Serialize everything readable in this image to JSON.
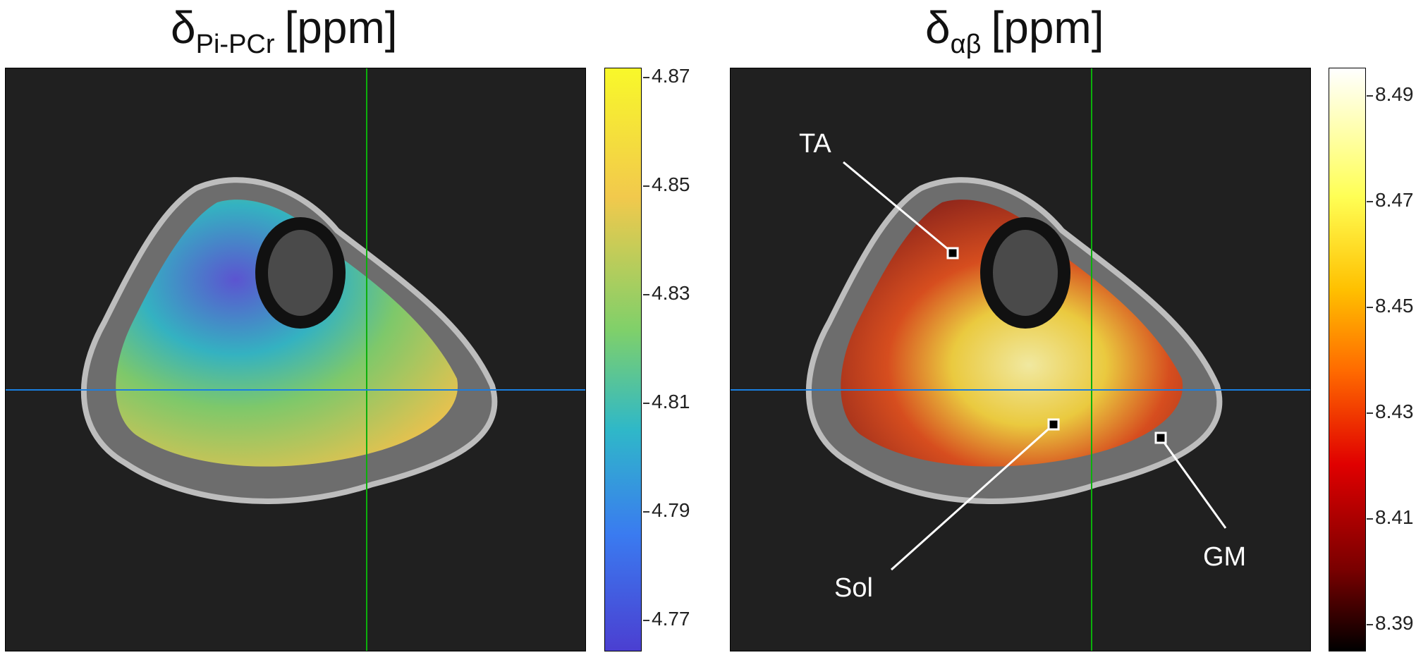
{
  "left_panel": {
    "title": "δ",
    "title_sub": "Pi-PCr",
    "title_unit": "[ppm]",
    "colorbar": {
      "colormap": "parula",
      "ticks": [
        "4.87",
        "4.85",
        "4.83",
        "4.81",
        "4.79",
        "4.77"
      ]
    }
  },
  "right_panel": {
    "title": "δ",
    "title_sub": "αβ",
    "title_unit": "[ppm]",
    "colorbar": {
      "colormap": "hot",
      "ticks": [
        "8.49",
        "8.47",
        "8.45",
        "8.43",
        "8.41",
        "8.39"
      ]
    },
    "annotations": {
      "ta": "TA",
      "sol": "Sol",
      "gm": "GM"
    }
  }
}
